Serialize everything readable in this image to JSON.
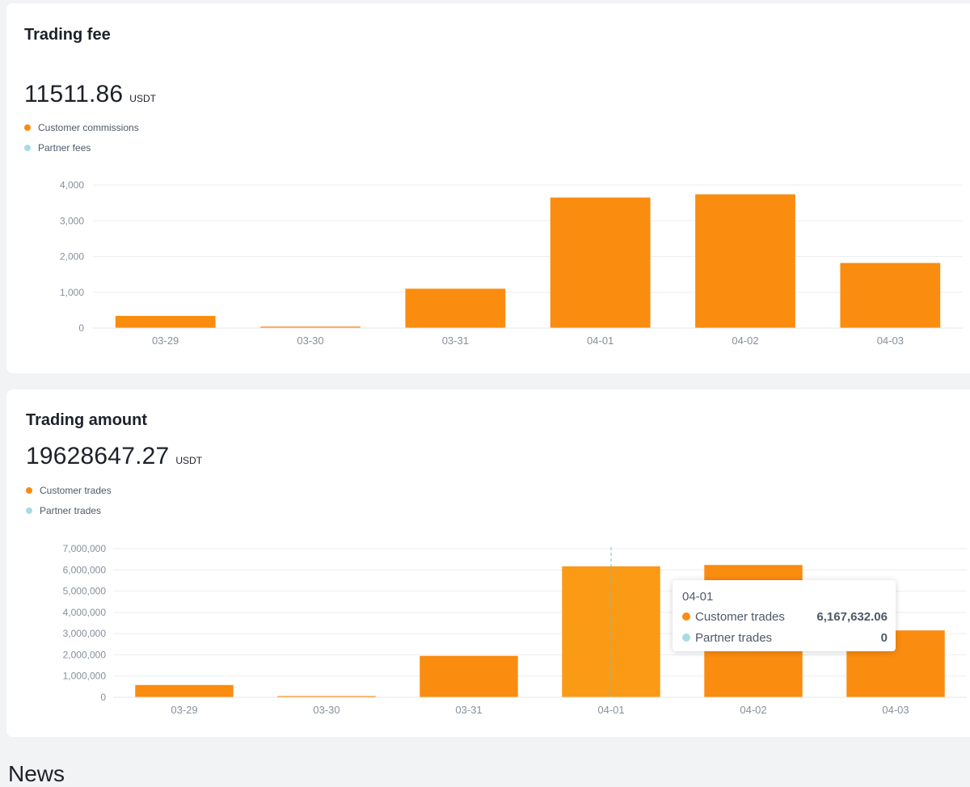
{
  "colors": {
    "orange": "#fa8c0f",
    "orange_hover": "#fa9a15",
    "teal": "#a8dce3",
    "grid": "#eceef1",
    "axis_text": "#86909c"
  },
  "fee": {
    "title": "Trading fee",
    "total": "11511.86",
    "unit": "USDT",
    "legend": [
      {
        "label": "Customer commissions",
        "color": "#fa8c0f"
      },
      {
        "label": "Partner fees",
        "color": "#a8dce3"
      }
    ]
  },
  "amount": {
    "title": "Trading amount",
    "total": "19628647.27",
    "unit": "USDT",
    "legend": [
      {
        "label": "Customer trades",
        "color": "#fa8c0f"
      },
      {
        "label": "Partner trades",
        "color": "#a8dce3"
      }
    ]
  },
  "tooltip": {
    "date": "04-01",
    "rows": [
      {
        "label": "Customer trades",
        "value": "6,167,632.06",
        "color": "#fa8c0f"
      },
      {
        "label": "Partner trades",
        "value": "0",
        "color": "#a8dce3"
      }
    ]
  },
  "news": {
    "title": "News"
  },
  "chart_data": [
    {
      "type": "bar",
      "categories": [
        "03-29",
        "03-30",
        "03-31",
        "04-01",
        "04-02",
        "04-03"
      ],
      "series": [
        {
          "name": "Customer commissions",
          "values": [
            340,
            40,
            1100,
            3650,
            3740,
            1820
          ]
        },
        {
          "name": "Partner fees",
          "values": [
            0,
            0,
            0,
            0,
            0,
            0
          ]
        }
      ],
      "yticks": [
        "0",
        "1,000",
        "2,000",
        "3,000",
        "4,000"
      ],
      "ylim": [
        0,
        4000
      ],
      "grid": true
    },
    {
      "type": "bar",
      "categories": [
        "03-29",
        "03-30",
        "03-31",
        "04-01",
        "04-02",
        "04-03"
      ],
      "series": [
        {
          "name": "Customer trades",
          "values": [
            580000,
            60000,
            1950000,
            6167632.06,
            6230000,
            3150000
          ]
        },
        {
          "name": "Partner trades",
          "values": [
            0,
            0,
            0,
            0,
            0,
            0
          ]
        }
      ],
      "yticks": [
        "0",
        "1,000,000",
        "2,000,000",
        "3,000,000",
        "4,000,000",
        "5,000,000",
        "6,000,000",
        "7,000,000"
      ],
      "ylim": [
        0,
        7000000
      ],
      "grid": true,
      "highlight": "04-01"
    }
  ]
}
